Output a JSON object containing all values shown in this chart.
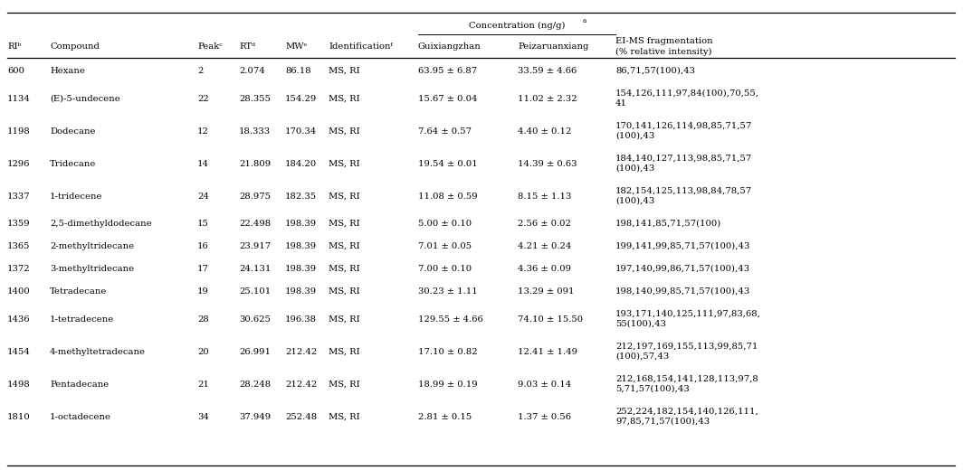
{
  "col_headers": [
    "RIᵇ",
    "Compound",
    "Peakᶜ",
    "RTᵈ",
    "MWᵉ",
    "Identificationᶠ",
    "Guixiangzhan",
    "Peizaruanxiang",
    "EI-MS fragmentation\n(% relative intensity)"
  ],
  "rows": [
    [
      "600",
      "Hexane",
      "2",
      "2.074",
      "86.18",
      "MS, RI",
      "63.95 ± 6.87",
      "33.59 ± 4.66",
      "86,71,57(100),43"
    ],
    [
      "1134",
      "(E)-5-undecene",
      "22",
      "28.355",
      "154.29",
      "MS, RI",
      "15.67 ± 0.04",
      "11.02 ± 2.32",
      "154,126,111,97,84(100),70,55,\n41"
    ],
    [
      "1198",
      "Dodecane",
      "12",
      "18.333",
      "170.34",
      "MS, RI",
      "7.64 ± 0.57",
      "4.40 ± 0.12",
      "170,141,126,114,98,85,71,57\n(100),43"
    ],
    [
      "1296",
      "Tridecane",
      "14",
      "21.809",
      "184.20",
      "MS, RI",
      "19.54 ± 0.01",
      "14.39 ± 0.63",
      "184,140,127,113,98,85,71,57\n(100),43"
    ],
    [
      "1337",
      "1-tridecene",
      "24",
      "28.975",
      "182.35",
      "MS, RI",
      "11.08 ± 0.59",
      "8.15 ± 1.13",
      "182,154,125,113,98,84,78,57\n(100),43"
    ],
    [
      "1359",
      "2,5-dimethyldodecane",
      "15",
      "22.498",
      "198.39",
      "MS, RI",
      "5.00 ± 0.10",
      "2.56 ± 0.02",
      "198,141,85,71,57(100)"
    ],
    [
      "1365",
      "2-methyltridecane",
      "16",
      "23.917",
      "198.39",
      "MS, RI",
      "7.01 ± 0.05",
      "4.21 ± 0.24",
      "199,141,99,85,71,57(100),43"
    ],
    [
      "1372",
      "3-methyltridecane",
      "17",
      "24.131",
      "198.39",
      "MS, RI",
      "7.00 ± 0.10",
      "4.36 ± 0.09",
      "197,140,99,86,71,57(100),43"
    ],
    [
      "1400",
      "Tetradecane",
      "19",
      "25.101",
      "198.39",
      "MS, RI",
      "30.23 ± 1.11",
      "13.29 ± 091",
      "198,140,99,85,71,57(100),43"
    ],
    [
      "1436",
      "1-tetradecene",
      "28",
      "30.625",
      "196.38",
      "MS, RI",
      "129.55 ± 4.66",
      "74.10 ± 15.50",
      "193,171,140,125,111,97,83,68,\n55(100),43"
    ],
    [
      "1454",
      "4-methyltetradecane",
      "20",
      "26.991",
      "212.42",
      "MS, RI",
      "17.10 ± 0.82",
      "12.41 ± 1.49",
      "212,197,169,155,113,99,85,71\n(100),57,43"
    ],
    [
      "1498",
      "Pentadecane",
      "21",
      "28.248",
      "212.42",
      "MS, RI",
      "18.99 ± 0.19",
      "9.03 ± 0.14",
      "212,168,154,141,128,113,97,8\n5,71,57(100),43"
    ],
    [
      "1810",
      "1-octadecene",
      "34",
      "37.949",
      "252.48",
      "MS, RI",
      "2.81 ± 0.15",
      "1.37 ± 0.56",
      "252,224,182,154,140,126,111,\n97,85,71,57(100),43"
    ]
  ],
  "conc_header": "Concentration (ng/g)",
  "conc_superscript": "a",
  "background_color": "#ffffff",
  "line_color": "#000000",
  "text_color": "#000000",
  "font_size": 7.2,
  "italic_compound_col": 1
}
